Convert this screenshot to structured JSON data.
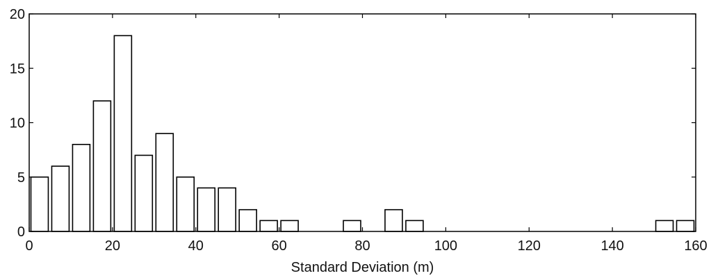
{
  "chart_data": {
    "type": "bar",
    "title": "",
    "xlabel": "Standard Deviation (m)",
    "ylabel": "",
    "xlim": [
      0,
      160
    ],
    "ylim": [
      0,
      20
    ],
    "xticks": [
      0,
      20,
      40,
      60,
      80,
      100,
      120,
      140,
      160
    ],
    "yticks": [
      0,
      5,
      10,
      15,
      20
    ],
    "bin_width": 5,
    "grid": false,
    "legend": "none",
    "bar_fill": "#ffffff",
    "bar_stroke": "#000000",
    "bins": [
      {
        "x": 2.5,
        "value": 5
      },
      {
        "x": 7.5,
        "value": 6
      },
      {
        "x": 12.5,
        "value": 8
      },
      {
        "x": 17.5,
        "value": 12
      },
      {
        "x": 22.5,
        "value": 18
      },
      {
        "x": 27.5,
        "value": 7
      },
      {
        "x": 32.5,
        "value": 9
      },
      {
        "x": 37.5,
        "value": 5
      },
      {
        "x": 42.5,
        "value": 4
      },
      {
        "x": 47.5,
        "value": 4
      },
      {
        "x": 52.5,
        "value": 2
      },
      {
        "x": 57.5,
        "value": 1
      },
      {
        "x": 62.5,
        "value": 1
      },
      {
        "x": 67.5,
        "value": 0
      },
      {
        "x": 72.5,
        "value": 0
      },
      {
        "x": 77.5,
        "value": 1
      },
      {
        "x": 82.5,
        "value": 0
      },
      {
        "x": 87.5,
        "value": 2
      },
      {
        "x": 92.5,
        "value": 1
      },
      {
        "x": 97.5,
        "value": 0
      },
      {
        "x": 102.5,
        "value": 0
      },
      {
        "x": 107.5,
        "value": 0
      },
      {
        "x": 112.5,
        "value": 0
      },
      {
        "x": 117.5,
        "value": 0
      },
      {
        "x": 122.5,
        "value": 0
      },
      {
        "x": 127.5,
        "value": 0
      },
      {
        "x": 132.5,
        "value": 0
      },
      {
        "x": 137.5,
        "value": 0
      },
      {
        "x": 142.5,
        "value": 0
      },
      {
        "x": 147.5,
        "value": 0
      },
      {
        "x": 152.5,
        "value": 1
      },
      {
        "x": 157.5,
        "value": 1
      }
    ]
  }
}
